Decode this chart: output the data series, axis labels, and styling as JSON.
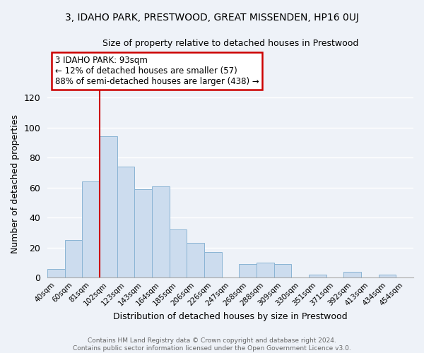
{
  "title": "3, IDAHO PARK, PRESTWOOD, GREAT MISSENDEN, HP16 0UJ",
  "subtitle": "Size of property relative to detached houses in Prestwood",
  "xlabel": "Distribution of detached houses by size in Prestwood",
  "ylabel": "Number of detached properties",
  "bar_labels": [
    "40sqm",
    "60sqm",
    "81sqm",
    "102sqm",
    "123sqm",
    "143sqm",
    "164sqm",
    "185sqm",
    "206sqm",
    "226sqm",
    "247sqm",
    "268sqm",
    "288sqm",
    "309sqm",
    "330sqm",
    "351sqm",
    "371sqm",
    "392sqm",
    "413sqm",
    "434sqm",
    "454sqm"
  ],
  "bar_values": [
    6,
    25,
    64,
    94,
    74,
    59,
    61,
    32,
    23,
    17,
    0,
    9,
    10,
    9,
    0,
    2,
    0,
    4,
    0,
    2,
    0
  ],
  "bar_color": "#ccdcee",
  "bar_edge_color": "#8ab4d4",
  "ylim": [
    0,
    125
  ],
  "yticks": [
    0,
    20,
    40,
    60,
    80,
    100,
    120
  ],
  "marker_label": "3 IDAHO PARK: 93sqm",
  "annotation_line1": "← 12% of detached houses are smaller (57)",
  "annotation_line2": "88% of semi-detached houses are larger (438) →",
  "annotation_box_color": "#ffffff",
  "annotation_box_edge_color": "#cc0000",
  "marker_line_color": "#cc0000",
  "footer_line1": "Contains HM Land Registry data © Crown copyright and database right 2024.",
  "footer_line2": "Contains public sector information licensed under the Open Government Licence v3.0.",
  "background_color": "#eef2f8",
  "plot_bg_color": "#eef2f8",
  "grid_color": "#ffffff",
  "marker_bar_index": 3,
  "title_fontsize": 10,
  "subtitle_fontsize": 9
}
